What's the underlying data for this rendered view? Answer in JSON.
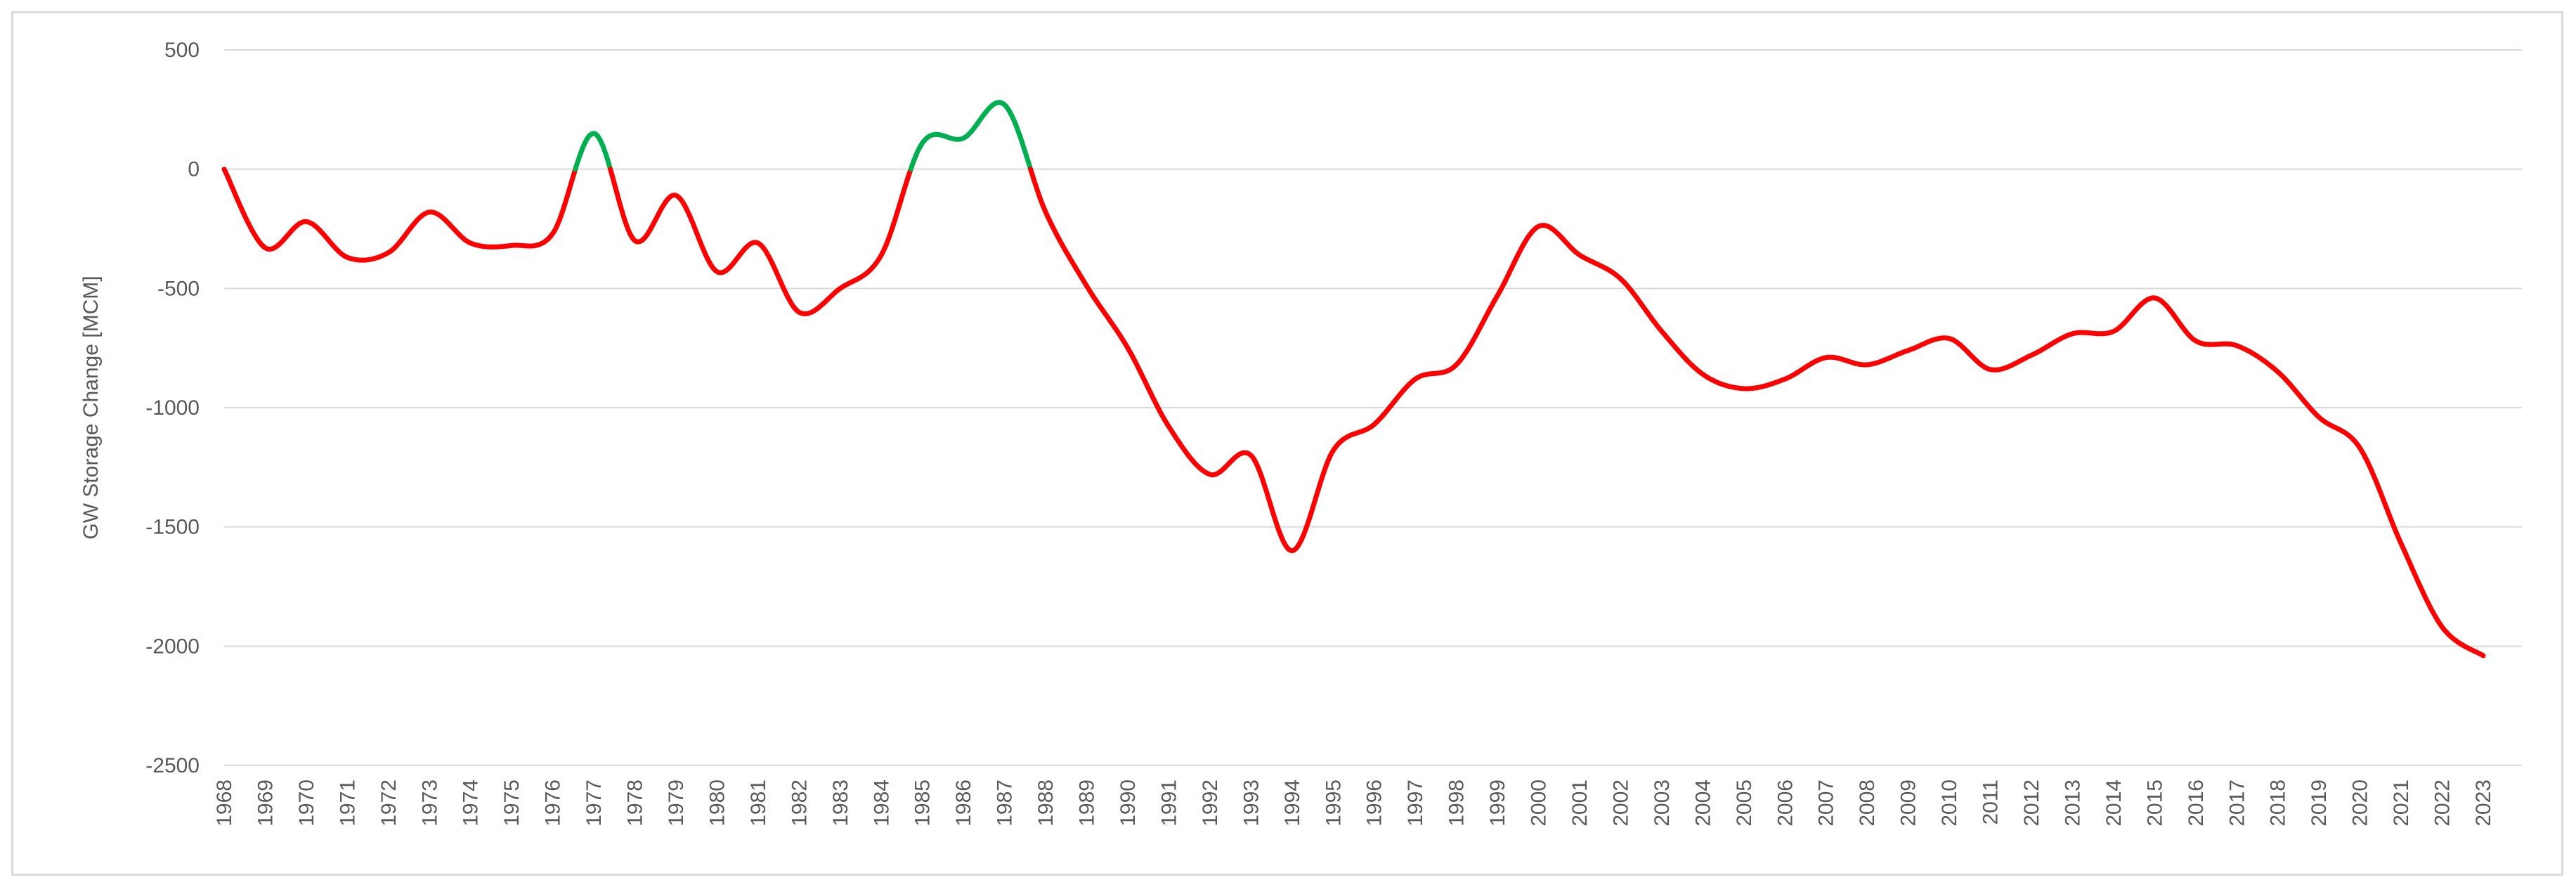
{
  "chart_data": {
    "type": "line",
    "title": "",
    "xlabel": "",
    "ylabel": "GW Storage Change [MCM]",
    "ylim": [
      -2500,
      500
    ],
    "yticks": [
      500,
      0,
      -500,
      -1000,
      -1500,
      -2000,
      -2500
    ],
    "grid": true,
    "legend": "none",
    "colors": {
      "negative": "#ff0000",
      "positive": "#00b050",
      "grid": "#d9d9d9",
      "text": "#595959"
    },
    "x": [
      1968,
      1969,
      1970,
      1971,
      1972,
      1973,
      1974,
      1975,
      1976,
      1977,
      1978,
      1979,
      1980,
      1981,
      1982,
      1983,
      1984,
      1985,
      1986,
      1987,
      1988,
      1989,
      1990,
      1991,
      1992,
      1993,
      1994,
      1995,
      1996,
      1997,
      1998,
      1999,
      2000,
      2001,
      2002,
      2003,
      2004,
      2005,
      2006,
      2007,
      2008,
      2009,
      2010,
      2011,
      2012,
      2013,
      2014,
      2015,
      2016,
      2017,
      2018,
      2019,
      2020,
      2021,
      2022,
      2023
    ],
    "series": [
      {
        "values": [
          0,
          -330,
          -220,
          -370,
          -350,
          -180,
          -310,
          -320,
          -270,
          150,
          -300,
          -110,
          -430,
          -310,
          -600,
          -500,
          -360,
          110,
          130,
          270,
          -180,
          -490,
          -750,
          -1080,
          -1280,
          -1200,
          -1600,
          -1180,
          -1070,
          -880,
          -820,
          -530,
          -240,
          -360,
          -460,
          -680,
          -860,
          -920,
          -880,
          -790,
          -820,
          -760,
          -710,
          -840,
          -780,
          -690,
          -680,
          -540,
          -720,
          -740,
          -850,
          -1040,
          -1170,
          -1570,
          -1920,
          -2040
        ]
      }
    ]
  }
}
